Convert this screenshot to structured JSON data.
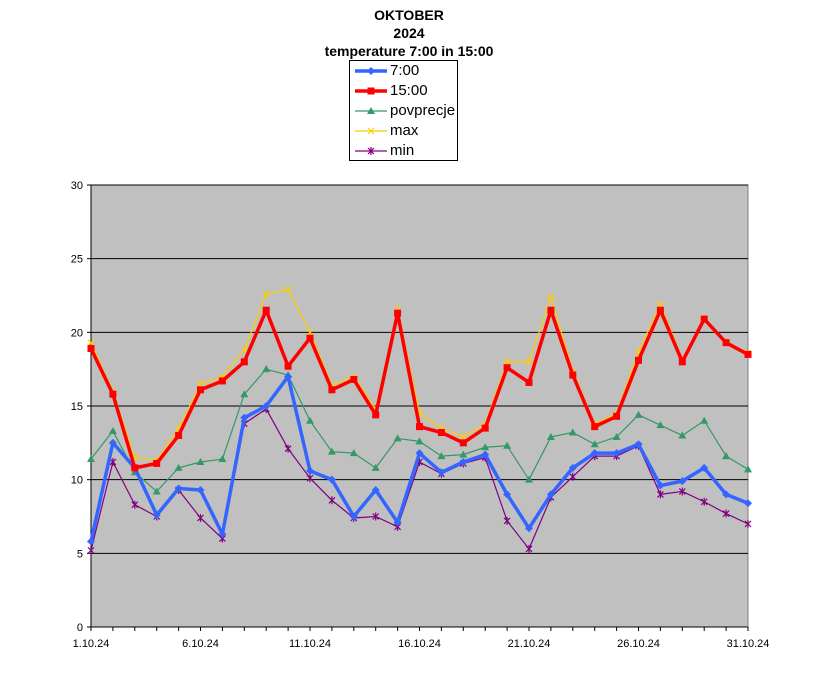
{
  "title_lines": [
    "OKTOBER",
    "2024",
    "temperature 7:00 in 15:00"
  ],
  "chart_data": {
    "type": "line",
    "title": "OKTOBER 2024 temperature 7:00 in 15:00",
    "x": [
      "1.10.24",
      "2.10.24",
      "3.10.24",
      "4.10.24",
      "5.10.24",
      "6.10.24",
      "7.10.24",
      "8.10.24",
      "9.10.24",
      "10.10.24",
      "11.10.24",
      "12.10.24",
      "13.10.24",
      "14.10.24",
      "15.10.24",
      "16.10.24",
      "17.10.24",
      "18.10.24",
      "19.10.24",
      "20.10.24",
      "21.10.24",
      "22.10.24",
      "23.10.24",
      "24.10.24",
      "25.10.24",
      "26.10.24",
      "27.10.24",
      "28.10.24",
      "29.10.24",
      "30.10.24",
      "31.10.24"
    ],
    "x_tick_labels": [
      "1.10.24",
      "6.10.24",
      "11.10.24",
      "16.10.24",
      "21.10.24",
      "26.10.24",
      "31.10.24"
    ],
    "x_tick_index": [
      0,
      5,
      10,
      15,
      20,
      25,
      30
    ],
    "ylim": [
      0,
      30
    ],
    "y_ticks": [
      0,
      5,
      10,
      15,
      20,
      25,
      30
    ],
    "grid": true,
    "legend_position": "top-center",
    "plot_background": "#c0c0c0",
    "series": [
      {
        "name": "7:00",
        "color": "#3366ff",
        "marker": "diamond",
        "values": [
          5.8,
          12.5,
          10.8,
          7.6,
          9.4,
          9.3,
          6.3,
          14.2,
          15.0,
          17.0,
          10.6,
          10.0,
          7.5,
          9.3,
          7.1,
          11.8,
          10.5,
          11.2,
          11.7,
          9.0,
          6.7,
          9.0,
          10.8,
          11.8,
          11.8,
          12.4,
          9.6,
          9.9,
          10.8,
          9.0,
          8.4
        ]
      },
      {
        "name": "15:00",
        "color": "#ff0000",
        "marker": "square",
        "values": [
          18.9,
          15.8,
          10.8,
          11.1,
          13.0,
          16.1,
          16.7,
          18.0,
          21.5,
          17.7,
          19.6,
          16.1,
          16.8,
          14.4,
          21.3,
          13.6,
          13.2,
          12.5,
          13.5,
          17.6,
          16.6,
          21.5,
          17.1,
          13.6,
          14.3,
          18.1,
          21.5,
          18.0,
          20.9,
          19.3,
          18.5
        ]
      },
      {
        "name": "povprecje",
        "color": "#339966",
        "marker": "triangle",
        "values": [
          11.4,
          13.3,
          10.5,
          9.2,
          10.8,
          11.2,
          11.4,
          15.8,
          17.5,
          17.1,
          14.0,
          11.9,
          11.8,
          10.8,
          12.8,
          12.6,
          11.6,
          11.7,
          12.2,
          12.3,
          10.0,
          12.9,
          13.2,
          12.4,
          12.9,
          14.4,
          13.7,
          13.0,
          14.0,
          11.6,
          10.7
        ]
      },
      {
        "name": "max",
        "color": "#ffcc00",
        "marker": "x",
        "values": [
          19.3,
          16.0,
          11.5,
          11.3,
          13.5,
          16.5,
          17.0,
          18.8,
          22.6,
          22.9,
          20.0,
          16.4,
          17.0,
          14.8,
          21.6,
          14.5,
          13.5,
          12.9,
          13.8,
          18.0,
          18.0,
          22.4,
          17.4,
          13.8,
          14.5,
          18.7,
          21.9,
          18.2,
          21.0,
          19.4,
          18.6
        ]
      },
      {
        "name": "min",
        "color": "#800080",
        "marker": "star",
        "values": [
          5.2,
          11.2,
          8.3,
          7.5,
          9.3,
          7.4,
          6.0,
          13.8,
          14.8,
          12.1,
          10.1,
          8.6,
          7.4,
          7.5,
          6.8,
          11.2,
          10.4,
          11.1,
          11.5,
          7.2,
          5.3,
          8.8,
          10.2,
          11.6,
          11.6,
          12.3,
          9.0,
          9.2,
          8.5,
          7.7,
          7.0
        ]
      }
    ]
  }
}
